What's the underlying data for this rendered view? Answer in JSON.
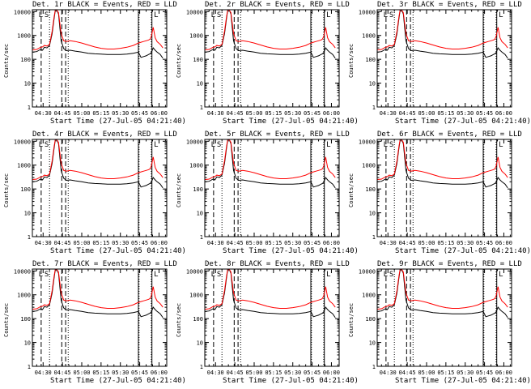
{
  "chart_data": {
    "type": "line",
    "layout": "3x3 grid",
    "panels": [
      {
        "title": "Det. 1r  BLACK = Events, RED = LLD",
        "xlabel": "Start Time (27-Jul-05 04:21:40)",
        "ylabel": "Counts/sec"
      },
      {
        "title": "Det. 2r  BLACK = Events, RED = LLD",
        "xlabel": "Start Time (27-Jul-05 04:21:40)",
        "ylabel": "Counts/sec"
      },
      {
        "title": "Det. 3r  BLACK = Events, RED = LLD",
        "xlabel": "Start Time (27-Jul-05 04:21:40)",
        "ylabel": "Counts/sec"
      },
      {
        "title": "Det. 4r  BLACK = Events, RED = LLD",
        "xlabel": "Start Time (27-Jul-05 04:21:40)",
        "ylabel": "Counts/sec"
      },
      {
        "title": "Det. 5r  BLACK = Events, RED = LLD",
        "xlabel": "Start Time (27-Jul-05 04:21:40)",
        "ylabel": "Counts/sec"
      },
      {
        "title": "Det. 6r  BLACK = Events, RED = LLD",
        "xlabel": "Start Time (27-Jul-05 04:21:40)",
        "ylabel": "Counts/sec"
      },
      {
        "title": "Det. 7r  BLACK = Events, RED = LLD",
        "xlabel": "Start Time (27-Jul-05 04:21:40)",
        "ylabel": "Counts/sec"
      },
      {
        "title": "Det. 8r  BLACK = Events, RED = LLD",
        "xlabel": "Start Time (27-Jul-05 04:21:40)",
        "ylabel": "Counts/sec"
      },
      {
        "title": "Det. 9r  BLACK = Events, RED = LLD",
        "xlabel": "Start Time (27-Jul-05 04:21:40)",
        "ylabel": "Counts/sec"
      }
    ],
    "x_ticks": [
      "04:30",
      "04:45",
      "05:00",
      "05:15",
      "05:30",
      "05:45",
      "06:00"
    ],
    "x_tick_minutes": [
      30,
      45,
      60,
      75,
      90,
      105,
      120
    ],
    "xlim_minutes": [
      21.67,
      126
    ],
    "y_scale": "log",
    "ylim": [
      1,
      12000
    ],
    "y_ticks": [
      "1",
      "10",
      "100",
      "1000",
      "10000"
    ],
    "y_tick_values": [
      1,
      10,
      100,
      1000,
      10000
    ],
    "markers": {
      "S": 31,
      "L1": 26.5,
      "L2": 116
    },
    "dashed_lines": [
      28.5,
      44.5,
      47.5
    ],
    "dotted_lines": [
      35,
      49.5,
      104.5,
      114
    ],
    "solid_lines": [
      104,
      114.5
    ],
    "x": [
      22,
      25,
      28,
      29.5,
      31,
      33,
      35,
      37,
      38.5,
      39.5,
      40.5,
      42,
      44,
      46,
      48,
      51,
      55,
      60,
      65,
      70,
      75,
      80,
      85,
      90,
      95,
      100,
      104,
      106,
      108,
      110,
      112,
      113,
      114,
      115.5,
      117,
      118.5,
      121,
      123
    ],
    "series": [
      {
        "name": "RED = LLD",
        "color": "#ff0000",
        "values": [
          250,
          260,
          320,
          330,
          380,
          360,
          420,
          1500,
          6000,
          12000,
          12000,
          9000,
          1200,
          600,
          560,
          600,
          560,
          480,
          400,
          330,
          290,
          270,
          270,
          290,
          320,
          380,
          480,
          520,
          560,
          600,
          650,
          700,
          900,
          2200,
          800,
          550,
          420,
          300
        ]
      },
      {
        "name": "BLACK = Events",
        "color": "#000000",
        "values": [
          200,
          210,
          260,
          240,
          320,
          300,
          380,
          1200,
          5000,
          12000,
          12000,
          8000,
          600,
          280,
          230,
          240,
          220,
          200,
          180,
          170,
          165,
          160,
          160,
          160,
          165,
          180,
          200,
          120,
          130,
          140,
          160,
          170,
          190,
          300,
          240,
          200,
          160,
          110
        ]
      }
    ]
  }
}
